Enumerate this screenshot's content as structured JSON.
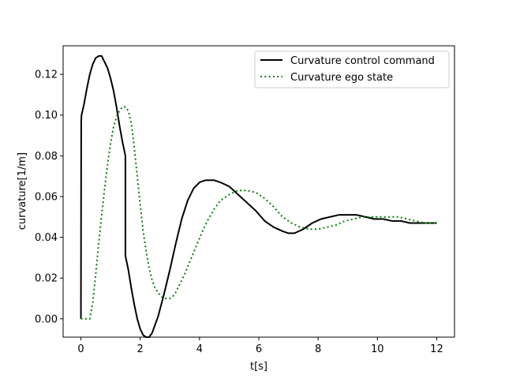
{
  "chart_data": {
    "type": "line",
    "title": "",
    "xlabel": "t[s]",
    "ylabel": "curvature[1/m]",
    "xlim": [
      -0.6,
      12.6
    ],
    "ylim": [
      -0.009,
      0.134
    ],
    "xticks": [
      0,
      2,
      4,
      6,
      8,
      10,
      12
    ],
    "yticks": [
      0.0,
      0.02,
      0.04,
      0.06,
      0.08,
      0.1,
      0.12
    ],
    "xtick_labels": [
      "0",
      "2",
      "4",
      "6",
      "8",
      "10",
      "12"
    ],
    "ytick_labels": [
      "0.00",
      "0.02",
      "0.04",
      "0.06",
      "0.08",
      "0.10",
      "0.12"
    ],
    "grid": false,
    "legend_position": "top-right",
    "series": [
      {
        "name": "Curvature control command",
        "color": "#000000",
        "style": "solid",
        "x": [
          0.0,
          0.01,
          0.02,
          0.1,
          0.2,
          0.3,
          0.4,
          0.5,
          0.6,
          0.7,
          0.8,
          0.9,
          1.0,
          1.1,
          1.2,
          1.3,
          1.4,
          1.5,
          1.5,
          1.6,
          1.7,
          1.8,
          1.9,
          2.0,
          2.1,
          2.2,
          2.3,
          2.4,
          2.5,
          2.6,
          2.8,
          3.0,
          3.2,
          3.4,
          3.6,
          3.8,
          4.0,
          4.2,
          4.4,
          4.5,
          4.7,
          5.0,
          5.3,
          5.6,
          5.9,
          6.2,
          6.5,
          6.8,
          7.0,
          7.2,
          7.5,
          7.8,
          8.1,
          8.4,
          8.7,
          9.0,
          9.3,
          9.6,
          9.9,
          10.2,
          10.5,
          10.8,
          11.1,
          11.4,
          11.7,
          12.0
        ],
        "y": [
          0.0,
          0.097,
          0.1,
          0.105,
          0.113,
          0.12,
          0.125,
          0.128,
          0.129,
          0.129,
          0.126,
          0.123,
          0.118,
          0.112,
          0.104,
          0.095,
          0.087,
          0.08,
          0.031,
          0.024,
          0.015,
          0.007,
          0.0,
          -0.005,
          -0.008,
          -0.009,
          -0.009,
          -0.007,
          -0.003,
          0.001,
          0.012,
          0.024,
          0.037,
          0.049,
          0.058,
          0.064,
          0.067,
          0.068,
          0.068,
          0.068,
          0.067,
          0.065,
          0.061,
          0.057,
          0.053,
          0.048,
          0.045,
          0.043,
          0.042,
          0.042,
          0.044,
          0.047,
          0.049,
          0.05,
          0.051,
          0.051,
          0.051,
          0.05,
          0.049,
          0.049,
          0.048,
          0.048,
          0.047,
          0.047,
          0.047,
          0.047
        ]
      },
      {
        "name": "Curvature ego state",
        "color": "#008000",
        "style": "dotted",
        "x": [
          0.0,
          0.1,
          0.2,
          0.3,
          0.4,
          0.5,
          0.6,
          0.7,
          0.8,
          0.9,
          1.0,
          1.1,
          1.2,
          1.3,
          1.4,
          1.5,
          1.6,
          1.7,
          1.8,
          1.9,
          2.0,
          2.1,
          2.2,
          2.3,
          2.4,
          2.5,
          2.6,
          2.7,
          2.8,
          2.9,
          3.0,
          3.1,
          3.2,
          3.3,
          3.5,
          3.7,
          3.9,
          4.1,
          4.3,
          4.5,
          4.7,
          5.0,
          5.3,
          5.6,
          5.9,
          6.2,
          6.5,
          6.8,
          7.1,
          7.4,
          7.7,
          8.0,
          8.3,
          8.6,
          8.9,
          9.2,
          9.5,
          9.8,
          10.1,
          10.4,
          10.7,
          11.0,
          11.3,
          11.6,
          12.0
        ],
        "y": [
          0.0,
          0.0,
          0.0,
          0.0,
          0.008,
          0.022,
          0.037,
          0.051,
          0.064,
          0.076,
          0.086,
          0.094,
          0.099,
          0.102,
          0.104,
          0.104,
          0.102,
          0.096,
          0.084,
          0.07,
          0.056,
          0.043,
          0.033,
          0.025,
          0.019,
          0.015,
          0.013,
          0.011,
          0.01,
          0.01,
          0.01,
          0.011,
          0.013,
          0.016,
          0.022,
          0.029,
          0.036,
          0.043,
          0.049,
          0.054,
          0.058,
          0.061,
          0.063,
          0.063,
          0.062,
          0.059,
          0.055,
          0.05,
          0.047,
          0.045,
          0.044,
          0.044,
          0.045,
          0.046,
          0.048,
          0.049,
          0.05,
          0.05,
          0.05,
          0.05,
          0.05,
          0.049,
          0.048,
          0.047,
          0.047
        ]
      }
    ]
  }
}
